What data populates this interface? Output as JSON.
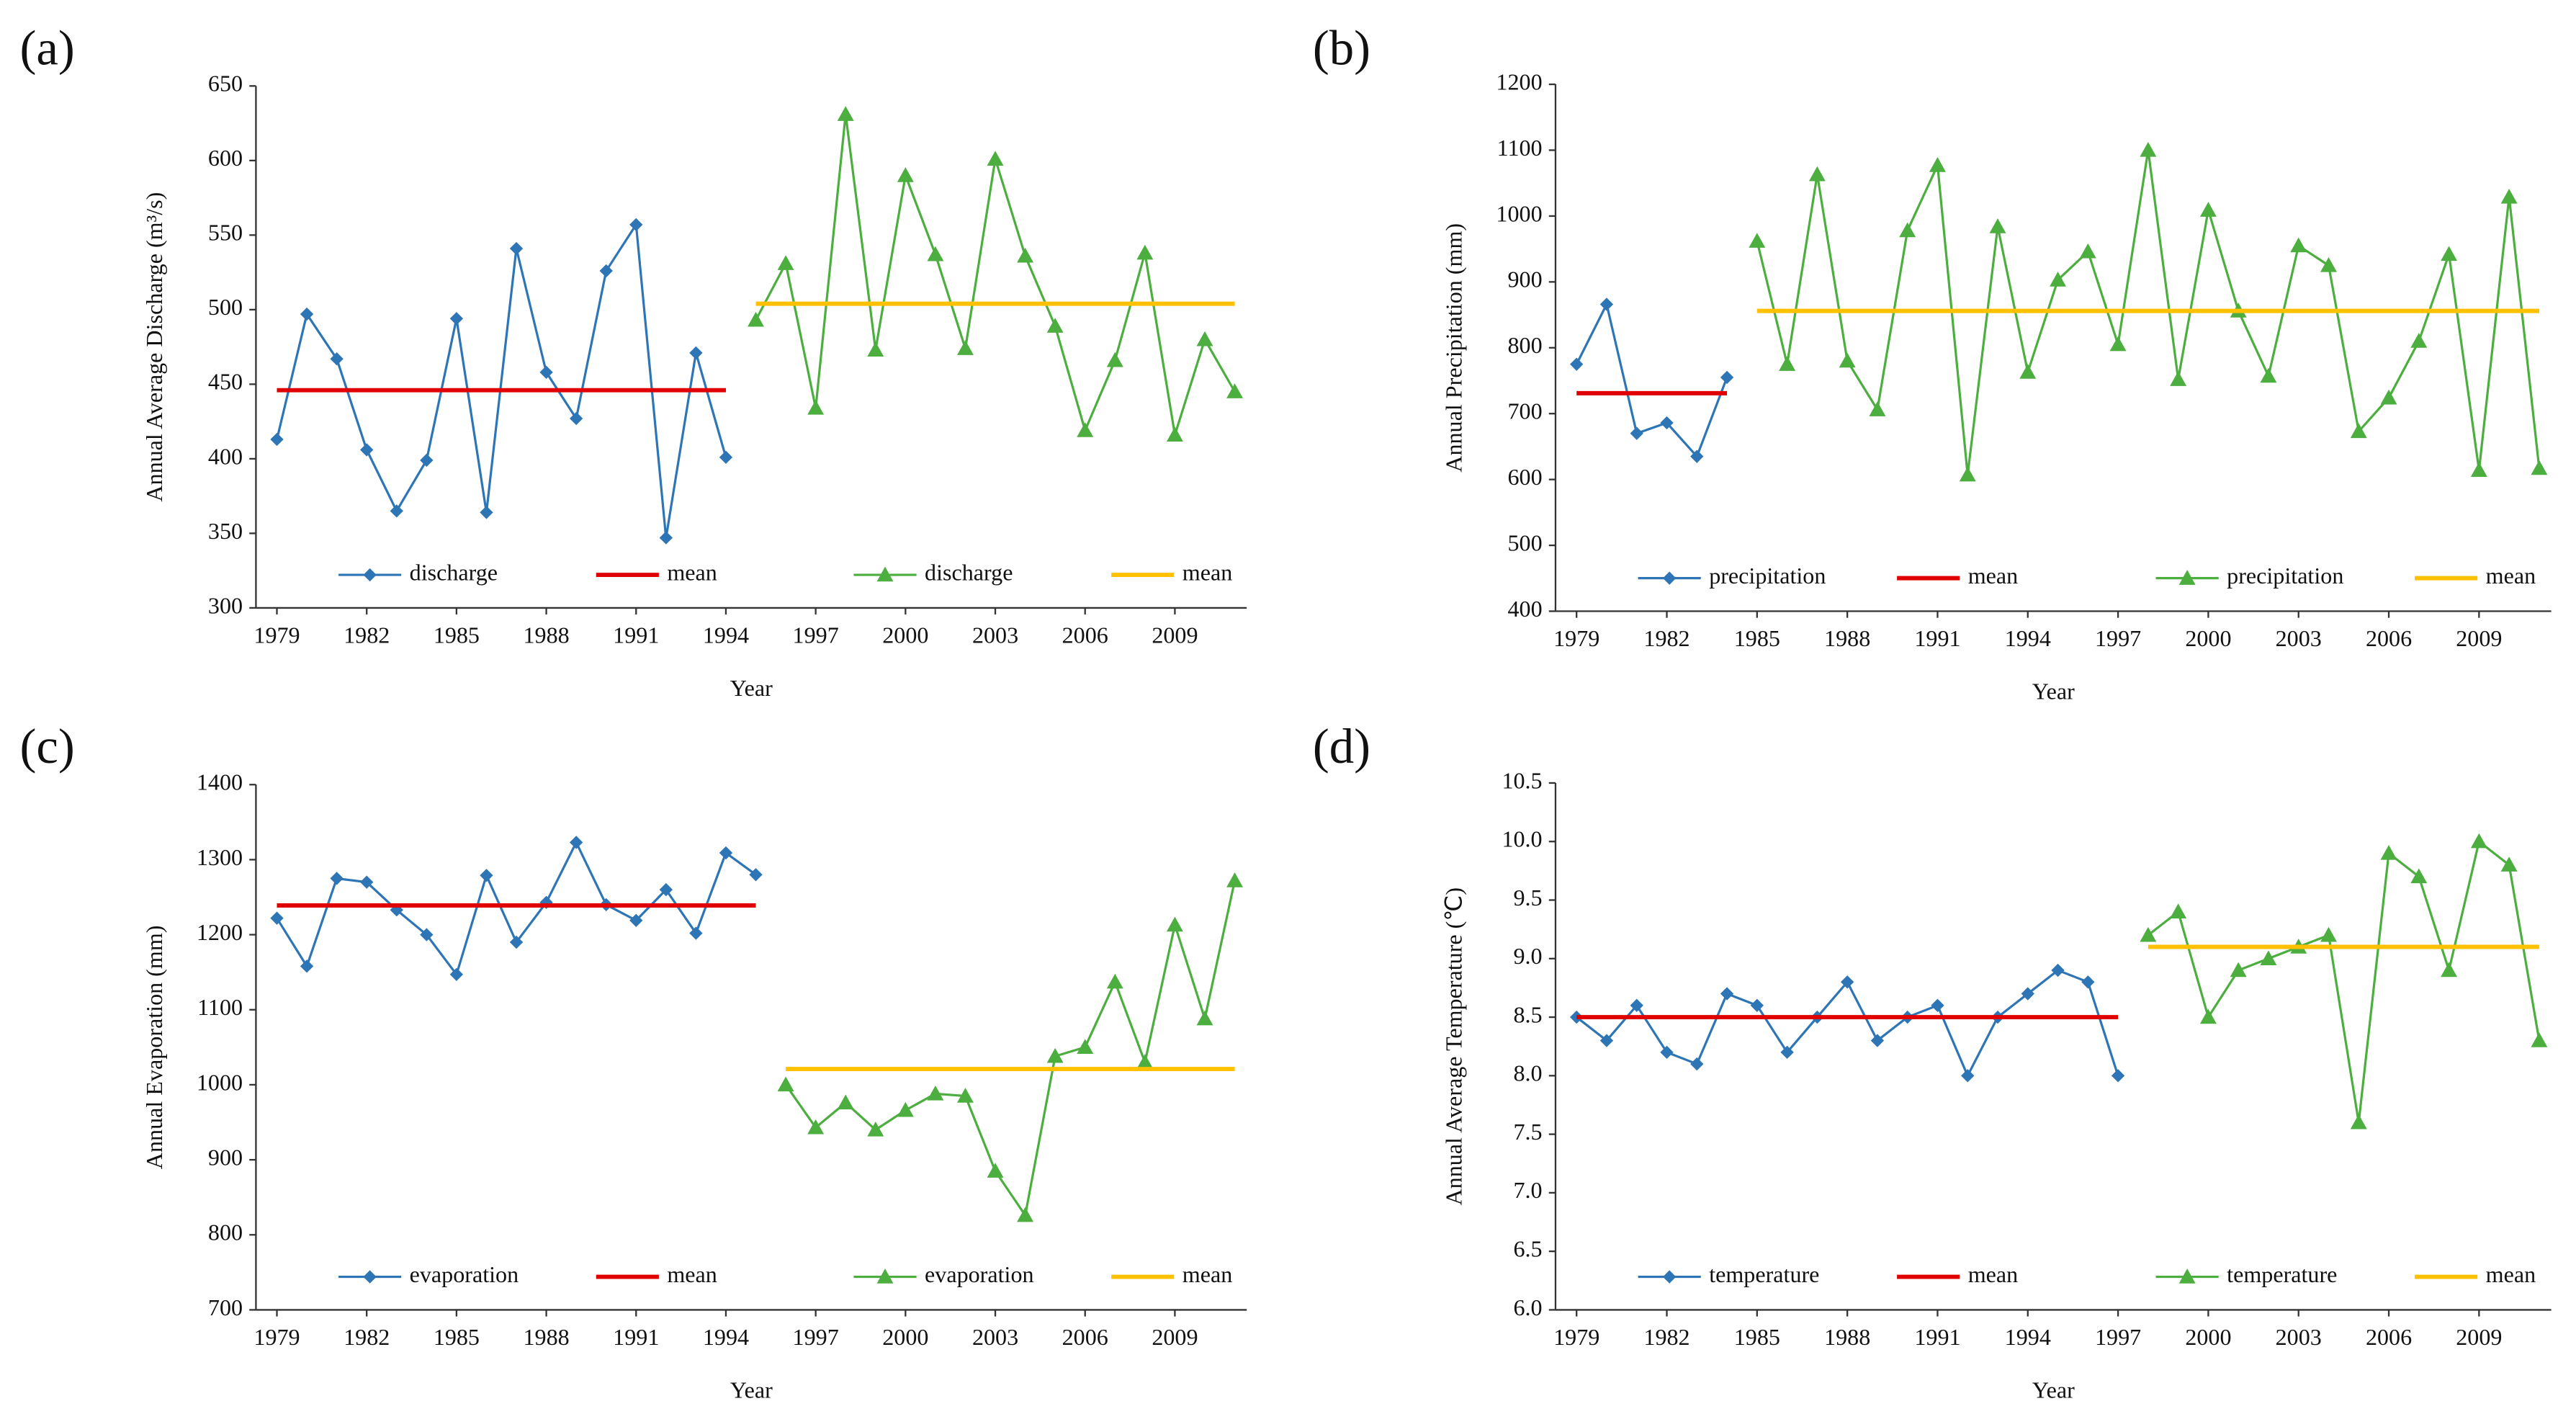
{
  "chart_data": [
    {
      "type": "line",
      "panel_label": "(a)",
      "xlabel": "Year",
      "ylabel": "Annual Average Discharge (m³/s)",
      "xlim": [
        1978.3,
        2011.4
      ],
      "xticks": [
        1979,
        1982,
        1985,
        1988,
        1991,
        1994,
        1997,
        2000,
        2003,
        2006,
        2009
      ],
      "ylim": [
        300,
        650
      ],
      "yticks": [
        300,
        350,
        400,
        450,
        500,
        550,
        600,
        650
      ],
      "legend": "bottom",
      "series": [
        {
          "name": "discharge",
          "color": "#2e75b6",
          "marker": "diamond",
          "x": [
            1979,
            1980,
            1981,
            1982,
            1983,
            1984,
            1985,
            1986,
            1987,
            1988,
            1989,
            1990,
            1991,
            1992,
            1993,
            1994
          ],
          "values": [
            413,
            497,
            467,
            406,
            365,
            399,
            494,
            364,
            541,
            458,
            427,
            526,
            557,
            347,
            471,
            401
          ]
        },
        {
          "name": "mean",
          "color": "#e00000",
          "marker": "none",
          "x": [
            1979,
            1994
          ],
          "values": [
            446,
            446
          ]
        },
        {
          "name": "discharge",
          "color": "#4cae3f",
          "marker": "triangle",
          "x": [
            1995,
            1996,
            1997,
            1998,
            1999,
            2000,
            2001,
            2002,
            2003,
            2004,
            2005,
            2006,
            2007,
            2008,
            2009,
            2010,
            2011
          ],
          "values": [
            493,
            531,
            434,
            631,
            473,
            590,
            537,
            474,
            601,
            536,
            489,
            419,
            466,
            538,
            416,
            480,
            445
          ]
        },
        {
          "name": "mean",
          "color": "#ffc000",
          "marker": "none",
          "x": [
            1995,
            2011
          ],
          "values": [
            504,
            504
          ]
        }
      ]
    },
    {
      "type": "line",
      "panel_label": "(b)",
      "xlabel": "Year",
      "ylabel": "Annual Precipitation (mm)",
      "xlim": [
        1978.3,
        2011.4
      ],
      "xticks": [
        1979,
        1982,
        1985,
        1988,
        1991,
        1994,
        1997,
        2000,
        2003,
        2006,
        2009
      ],
      "ylim": [
        400,
        1200
      ],
      "yticks": [
        400,
        500,
        600,
        700,
        800,
        900,
        1000,
        1100,
        1200
      ],
      "legend": "bottom",
      "series": [
        {
          "name": "precipitation",
          "color": "#2e75b6",
          "marker": "diamond",
          "x": [
            1979,
            1980,
            1981,
            1982,
            1983,
            1984
          ],
          "values": [
            775,
            866,
            670,
            686,
            635,
            755
          ]
        },
        {
          "name": "mean",
          "color": "#e00000",
          "marker": "none",
          "x": [
            1979,
            1984
          ],
          "values": [
            731,
            731
          ]
        },
        {
          "name": "precipitation",
          "color": "#4cae3f",
          "marker": "triangle",
          "x": [
            1985,
            1986,
            1987,
            1988,
            1989,
            1990,
            1991,
            1992,
            1993,
            1994,
            1995,
            1996,
            1997,
            1998,
            1999,
            2000,
            2001,
            2002,
            2003,
            2004,
            2005,
            2006,
            2007,
            2008,
            2009,
            2010,
            2011
          ],
          "values": [
            962,
            775,
            1063,
            780,
            706,
            978,
            1077,
            607,
            984,
            763,
            903,
            946,
            805,
            1100,
            752,
            1009,
            856,
            757,
            955,
            925,
            673,
            724,
            810,
            942,
            614,
            1029,
            617
          ]
        },
        {
          "name": "mean",
          "color": "#ffc000",
          "marker": "none",
          "x": [
            1985,
            2011
          ],
          "values": [
            856,
            856
          ]
        }
      ]
    },
    {
      "type": "line",
      "panel_label": "(c)",
      "xlabel": "Year",
      "ylabel": "Annual  Evaporation (mm)",
      "xlim": [
        1978.3,
        2011.4
      ],
      "xticks": [
        1979,
        1982,
        1985,
        1988,
        1991,
        1994,
        1997,
        2000,
        2003,
        2006,
        2009
      ],
      "ylim": [
        700,
        1400
      ],
      "yticks": [
        700,
        800,
        900,
        1000,
        1100,
        1200,
        1300,
        1400
      ],
      "legend": "bottom",
      "series": [
        {
          "name": "evaporation",
          "color": "#2e75b6",
          "marker": "diamond",
          "x": [
            1979,
            1980,
            1981,
            1982,
            1983,
            1984,
            1985,
            1986,
            1987,
            1988,
            1989,
            1990,
            1991,
            1992,
            1993,
            1994,
            1995
          ],
          "values": [
            1222,
            1158,
            1275,
            1270,
            1233,
            1200,
            1147,
            1279,
            1190,
            1243,
            1323,
            1240,
            1219,
            1260,
            1202,
            1309,
            1280
          ]
        },
        {
          "name": "mean",
          "color": "#e00000",
          "marker": "none",
          "x": [
            1979,
            1995
          ],
          "values": [
            1239,
            1239
          ]
        },
        {
          "name": "evaporation",
          "color": "#4cae3f",
          "marker": "triangle",
          "x": [
            1996,
            1997,
            1998,
            1999,
            2000,
            2001,
            2002,
            2003,
            2004,
            2005,
            2006,
            2007,
            2008,
            2009,
            2010,
            2011
          ],
          "values": [
            1000,
            943,
            976,
            940,
            966,
            988,
            985,
            885,
            826,
            1038,
            1050,
            1137,
            1030,
            1213,
            1088,
            1272
          ]
        },
        {
          "name": "mean",
          "color": "#ffc000",
          "marker": "none",
          "x": [
            1996,
            2011
          ],
          "values": [
            1021,
            1021
          ]
        }
      ]
    },
    {
      "type": "line",
      "panel_label": "(d)",
      "xlabel": "Year",
      "ylabel": "Annual Average Temperature (℃)",
      "xlim": [
        1978.3,
        2011.4
      ],
      "xticks": [
        1979,
        1982,
        1985,
        1988,
        1991,
        1994,
        1997,
        2000,
        2003,
        2006,
        2009
      ],
      "ylim": [
        6,
        10.5
      ],
      "yticks": [
        {
          "value": 6,
          "label": "6.0"
        },
        6.5,
        {
          "value": 7,
          "label": "7.0"
        },
        7.5,
        {
          "value": 8,
          "label": "8.0"
        },
        8.5,
        {
          "value": 9,
          "label": "9.0"
        },
        9.5,
        {
          "value": 10,
          "label": "10.0"
        },
        10.5
      ],
      "legend": "bottom",
      "series": [
        {
          "name": "temperature",
          "color": "#2e75b6",
          "marker": "diamond",
          "x": [
            1979,
            1980,
            1981,
            1982,
            1983,
            1984,
            1985,
            1986,
            1987,
            1988,
            1989,
            1990,
            1991,
            1992,
            1993,
            1994,
            1995,
            1996,
            1997
          ],
          "values": [
            8.5,
            8.3,
            8.6,
            8.2,
            8.1,
            8.7,
            8.6,
            8.2,
            8.5,
            8.8,
            8.3,
            8.5,
            8.6,
            8.0,
            8.5,
            8.7,
            8.9,
            8.8,
            8.0
          ]
        },
        {
          "name": "mean",
          "color": "#e00000",
          "marker": "none",
          "x": [
            1979,
            1997
          ],
          "values": [
            8.5,
            8.5
          ]
        },
        {
          "name": "temperature",
          "color": "#4cae3f",
          "marker": "triangle",
          "x": [
            1998,
            1999,
            2000,
            2001,
            2002,
            2003,
            2004,
            2005,
            2006,
            2007,
            2008,
            2009,
            2010,
            2011
          ],
          "values": [
            9.2,
            9.4,
            8.5,
            8.9,
            9.0,
            9.1,
            9.2,
            7.6,
            9.9,
            9.7,
            8.9,
            10.0,
            9.8,
            8.3
          ]
        },
        {
          "name": "mean",
          "color": "#ffc000",
          "marker": "none",
          "x": [
            1998,
            2011
          ],
          "values": [
            9.1,
            9.1
          ]
        }
      ]
    }
  ]
}
